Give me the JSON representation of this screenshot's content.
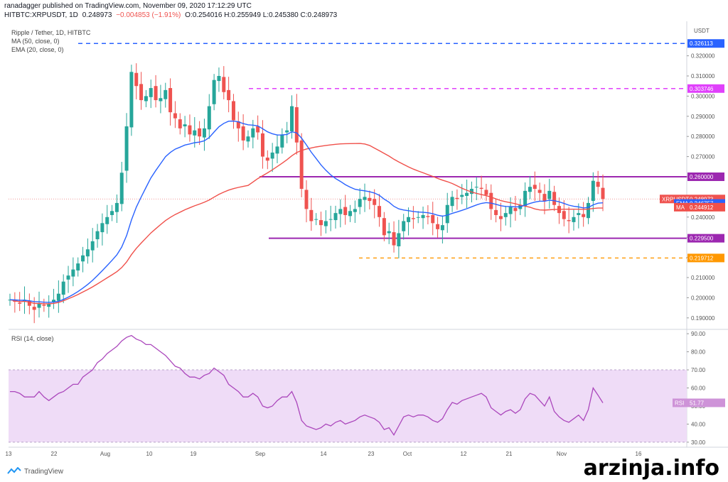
{
  "header": {
    "line1": "ranadagger published on TradingView.com, November 09, 2020 17:12:29 UTC",
    "symbol": "HITBTC:XRPUSDT, 1D",
    "last": "0.248973",
    "change": "−0.004853 (−1.91%)",
    "ohlc": "O:0.254016 H:0.255949 L:0.245380 C:0.248973"
  },
  "legend": {
    "title": "Ripple / Tether, 1D, HITBTC",
    "ma": "MA (50, close, 0)",
    "ema": "EMA (20, close, 0)",
    "rsi": "RSI (14, close)"
  },
  "colors": {
    "up": "#26a69a",
    "down": "#ef5350",
    "ema": "#2962ff",
    "ma": "#f0504a",
    "channel": "#9c27b0",
    "dash_blue": "#2962ff",
    "dash_magenta": "#e040fb",
    "dash_orange": "#ff9800",
    "rsi": "#ab47bc",
    "rsi_band": "#efdcf7"
  },
  "footer": {
    "brand": "TradingView",
    "logo_icon": "tradingview-logo-icon"
  },
  "watermark": "arzinja.info",
  "chart_data": [
    {
      "type": "candlestick",
      "title": "Ripple / Tether, 1D, HITBTC",
      "y_axis_unit": "USDT",
      "ylim": [
        0.185,
        0.335
      ],
      "x_ticks": [
        "13",
        "22",
        "Aug",
        "10",
        "19",
        "Sep",
        "14",
        "23",
        "Oct",
        "12",
        "21",
        "Nov",
        "16"
      ],
      "y_ticks": [
        "0.190000",
        "0.200000",
        "0.210000",
        "0.220000",
        "0.230000",
        "0.240000",
        "0.250000",
        "0.260000",
        "0.270000",
        "0.280000",
        "0.290000",
        "0.300000",
        "0.310000",
        "0.320000"
      ],
      "closes": [
        0.199,
        0.198,
        0.197,
        0.199,
        0.196,
        0.194,
        0.197,
        0.196,
        0.197,
        0.199,
        0.202,
        0.208,
        0.211,
        0.214,
        0.217,
        0.221,
        0.224,
        0.228,
        0.233,
        0.237,
        0.24,
        0.243,
        0.247,
        0.262,
        0.285,
        0.312,
        0.305,
        0.298,
        0.3,
        0.304,
        0.298,
        0.299,
        0.303,
        0.292,
        0.289,
        0.284,
        0.286,
        0.281,
        0.283,
        0.28,
        0.284,
        0.295,
        0.308,
        0.31,
        0.302,
        0.298,
        0.288,
        0.284,
        0.278,
        0.28,
        0.284,
        0.282,
        0.27,
        0.268,
        0.272,
        0.275,
        0.281,
        0.283,
        0.295,
        0.277,
        0.254,
        0.244,
        0.238,
        0.239,
        0.236,
        0.238,
        0.239,
        0.242,
        0.244,
        0.241,
        0.243,
        0.244,
        0.249,
        0.25,
        0.248,
        0.246,
        0.24,
        0.231,
        0.233,
        0.226,
        0.232,
        0.238,
        0.24,
        0.239,
        0.24,
        0.241,
        0.24,
        0.237,
        0.234,
        0.236,
        0.246,
        0.25,
        0.249,
        0.251,
        0.252,
        0.254,
        0.255,
        0.254,
        0.251,
        0.244,
        0.241,
        0.239,
        0.242,
        0.245,
        0.243,
        0.246,
        0.253,
        0.255,
        0.254,
        0.252,
        0.248,
        0.253,
        0.246,
        0.242,
        0.239,
        0.238,
        0.24,
        0.242,
        0.24,
        0.247,
        0.258,
        0.255,
        0.248973
      ],
      "key_levels": [
        {
          "label": "0.326113",
          "value": 0.326113,
          "style": "dashed-blue"
        },
        {
          "label": "0.303746",
          "value": 0.303746,
          "style": "dashed-magenta"
        },
        {
          "label": "0.260000",
          "value": 0.26,
          "style": "solid-purple"
        },
        {
          "label": "0.229500",
          "value": 0.2295,
          "style": "solid-purple"
        },
        {
          "label": "0.219712",
          "value": 0.219712,
          "style": "dashed-orange"
        }
      ],
      "tags": [
        {
          "label": "XRPUSDT",
          "value": "0.248973",
          "sub": "06:47:36",
          "color": "#ef5350",
          "price": 0.248973
        },
        {
          "label": "EMA",
          "value": "0.246757",
          "color": "#2962ff",
          "price": 0.246757
        },
        {
          "label": "MA",
          "value": "0.244912",
          "color": "#f0504a",
          "price": 0.244912
        }
      ]
    },
    {
      "type": "line",
      "title": "RSI (14, close)",
      "ylim": [
        28,
        92
      ],
      "y_ticks": [
        "30.00",
        "40.00",
        "50.00",
        "60.00",
        "70.00",
        "80.00",
        "90.00"
      ],
      "band": [
        30,
        70
      ],
      "current": {
        "label": "RSI",
        "value": "51.77"
      },
      "values": [
        58,
        58,
        57,
        55,
        55,
        55,
        58,
        55,
        53,
        55,
        57,
        58,
        60,
        62,
        62,
        66,
        68,
        70,
        74,
        76,
        79,
        81,
        83,
        86,
        88,
        89,
        87,
        86,
        84,
        84,
        82,
        80,
        78,
        75,
        72,
        71,
        68,
        66,
        66,
        65,
        67,
        68,
        71,
        69,
        67,
        62,
        60,
        58,
        55,
        55,
        57,
        55,
        50,
        49,
        50,
        53,
        55,
        55,
        58,
        52,
        42,
        39,
        38,
        37,
        38,
        40,
        39,
        41,
        42,
        40,
        41,
        42,
        44,
        45,
        44,
        43,
        41,
        37,
        38,
        34,
        39,
        44,
        45,
        44,
        45,
        45,
        44,
        42,
        41,
        43,
        48,
        52,
        51,
        53,
        54,
        55,
        56,
        57,
        55,
        49,
        47,
        45,
        47,
        48,
        46,
        48,
        54,
        57,
        56,
        53,
        50,
        55,
        47,
        44,
        42,
        41,
        43,
        45,
        42,
        48,
        60,
        56,
        51.77
      ]
    }
  ]
}
